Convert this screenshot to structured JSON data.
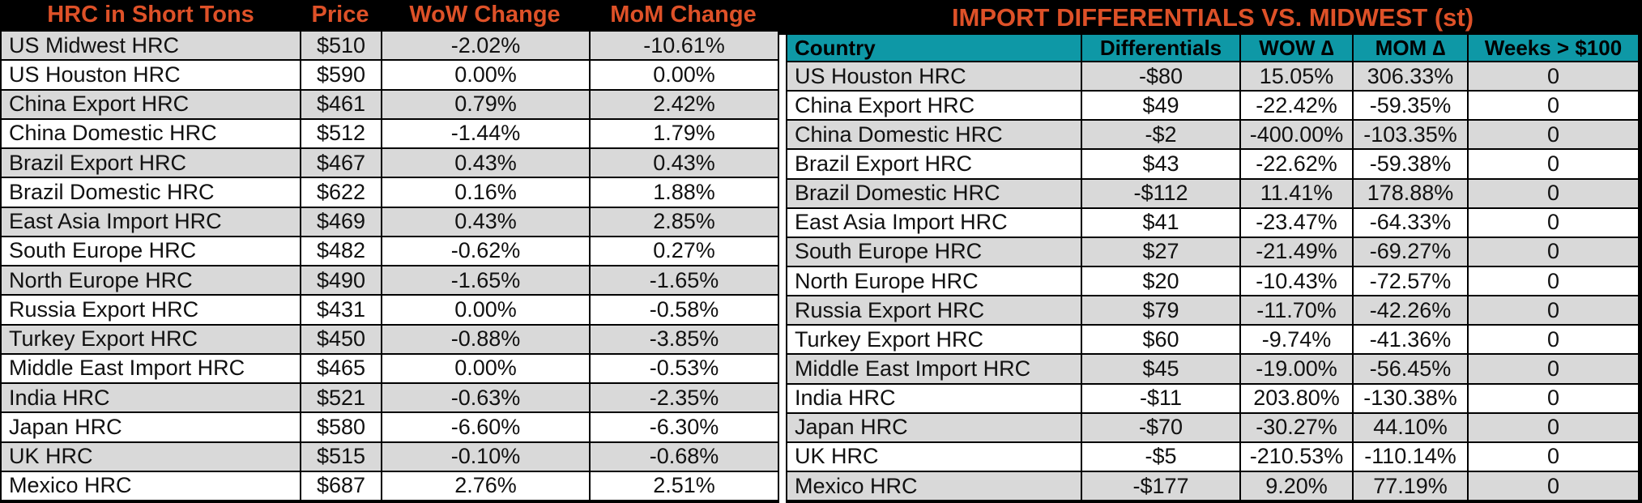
{
  "colors": {
    "accent_orange": "#DE5128",
    "header_teal": "#0E98A6",
    "row_gray": "#D9D9D9",
    "band_black": "#000000"
  },
  "left_table": {
    "headers": {
      "name": "HRC in Short Tons",
      "price": "Price",
      "wow": "WoW Change",
      "mom": "MoM Change"
    },
    "rows": [
      {
        "name": "US Midwest HRC",
        "price": "$510",
        "wow": "-2.02%",
        "mom": "-10.61%"
      },
      {
        "name": "US Houston HRC",
        "price": "$590",
        "wow": "0.00%",
        "mom": "0.00%"
      },
      {
        "name": "China Export HRC",
        "price": "$461",
        "wow": "0.79%",
        "mom": "2.42%"
      },
      {
        "name": "China Domestic HRC",
        "price": "$512",
        "wow": "-1.44%",
        "mom": "1.79%"
      },
      {
        "name": "Brazil Export HRC",
        "price": "$467",
        "wow": "0.43%",
        "mom": "0.43%"
      },
      {
        "name": "Brazil Domestic HRC",
        "price": "$622",
        "wow": "0.16%",
        "mom": "1.88%"
      },
      {
        "name": "East Asia Import HRC",
        "price": "$469",
        "wow": "0.43%",
        "mom": "2.85%"
      },
      {
        "name": "South Europe HRC",
        "price": "$482",
        "wow": "-0.62%",
        "mom": "0.27%"
      },
      {
        "name": "North Europe HRC",
        "price": "$490",
        "wow": "-1.65%",
        "mom": "-1.65%"
      },
      {
        "name": "Russia Export HRC",
        "price": "$431",
        "wow": "0.00%",
        "mom": "-0.58%"
      },
      {
        "name": "Turkey Export HRC",
        "price": "$450",
        "wow": "-0.88%",
        "mom": "-3.85%"
      },
      {
        "name": "Middle East Import HRC",
        "price": "$465",
        "wow": "0.00%",
        "mom": "-0.53%"
      },
      {
        "name": "India HRC",
        "price": "$521",
        "wow": "-0.63%",
        "mom": "-2.35%"
      },
      {
        "name": "Japan HRC",
        "price": "$580",
        "wow": "-6.60%",
        "mom": "-6.30%"
      },
      {
        "name": "UK HRC",
        "price": "$515",
        "wow": "-0.10%",
        "mom": "-0.68%"
      },
      {
        "name": "Mexico HRC",
        "price": "$687",
        "wow": "2.76%",
        "mom": "2.51%"
      }
    ]
  },
  "right_table": {
    "title": "IMPORT DIFFERENTIALS VS. MIDWEST (st)",
    "headers": {
      "country": "Country",
      "diff": "Differentials",
      "wow": "WOW ∆",
      "mom": "MOM ∆",
      "weeks": "Weeks > $100"
    },
    "rows": [
      {
        "country": "US Houston HRC",
        "diff": "-$80",
        "wow": "15.05%",
        "mom": "306.33%",
        "weeks": "0"
      },
      {
        "country": "China Export HRC",
        "diff": "$49",
        "wow": "-22.42%",
        "mom": "-59.35%",
        "weeks": "0"
      },
      {
        "country": "China Domestic HRC",
        "diff": "-$2",
        "wow": "-400.00%",
        "mom": "-103.35%",
        "weeks": "0"
      },
      {
        "country": "Brazil Export HRC",
        "diff": "$43",
        "wow": "-22.62%",
        "mom": "-59.38%",
        "weeks": "0"
      },
      {
        "country": "Brazil Domestic HRC",
        "diff": "-$112",
        "wow": "11.41%",
        "mom": "178.88%",
        "weeks": "0"
      },
      {
        "country": "East Asia Import HRC",
        "diff": "$41",
        "wow": "-23.47%",
        "mom": "-64.33%",
        "weeks": "0"
      },
      {
        "country": "South Europe HRC",
        "diff": "$27",
        "wow": "-21.49%",
        "mom": "-69.27%",
        "weeks": "0"
      },
      {
        "country": "North Europe HRC",
        "diff": "$20",
        "wow": "-10.43%",
        "mom": "-72.57%",
        "weeks": "0"
      },
      {
        "country": "Russia Export HRC",
        "diff": "$79",
        "wow": "-11.70%",
        "mom": "-42.26%",
        "weeks": "0"
      },
      {
        "country": "Turkey Export HRC",
        "diff": "$60",
        "wow": "-9.74%",
        "mom": "-41.36%",
        "weeks": "0"
      },
      {
        "country": "Middle East Import HRC",
        "diff": "$45",
        "wow": "-19.00%",
        "mom": "-56.45%",
        "weeks": "0"
      },
      {
        "country": "India HRC",
        "diff": "-$11",
        "wow": "203.80%",
        "mom": "-130.38%",
        "weeks": "0"
      },
      {
        "country": "Japan HRC",
        "diff": "-$70",
        "wow": "-30.27%",
        "mom": "44.10%",
        "weeks": "0"
      },
      {
        "country": "UK HRC",
        "diff": "-$5",
        "wow": "-210.53%",
        "mom": "-110.14%",
        "weeks": "0"
      },
      {
        "country": "Mexico HRC",
        "diff": "-$177",
        "wow": "9.20%",
        "mom": "77.19%",
        "weeks": "0"
      }
    ]
  }
}
